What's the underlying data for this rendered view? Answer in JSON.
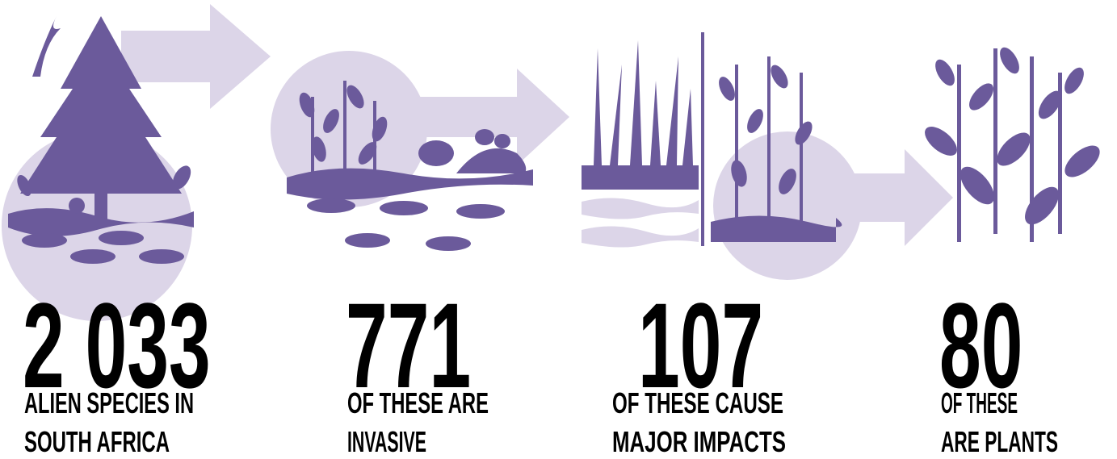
{
  "stages": [
    {
      "number": "2 033",
      "label_lines": [
        "ALIEN SPECIES IN",
        "SOUTH AFRICA"
      ]
    },
    {
      "number": "771",
      "label_lines": [
        "OF THESE ARE",
        "INVASIVE"
      ]
    },
    {
      "number": "107",
      "label_lines": [
        "OF THESE CAUSE",
        "MAJOR IMPACTS"
      ]
    },
    {
      "number": "80",
      "label_lines": [
        "OF THESE",
        "ARE PLANTS"
      ]
    }
  ]
}
